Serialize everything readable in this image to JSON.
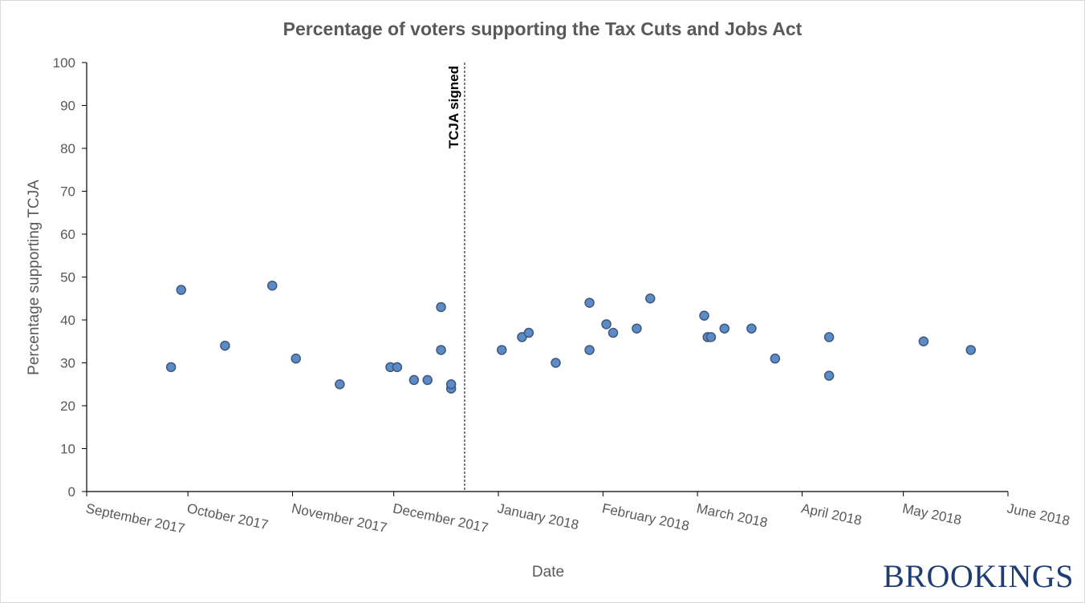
{
  "brand": {
    "name": "BROOKINGS",
    "color": "#1f3d73"
  },
  "chart_data": {
    "type": "scatter",
    "title": "Percentage of voters supporting the Tax Cuts and Jobs Act",
    "xlabel": "Date",
    "ylabel": "Percentage supporting TCJA",
    "ylim": [
      0,
      100
    ],
    "yticks": [
      0,
      10,
      20,
      30,
      40,
      50,
      60,
      70,
      80,
      90,
      100
    ],
    "xlim": [
      "2017-09-01",
      "2018-06-01"
    ],
    "xticks": [
      {
        "date": "2017-09-01",
        "label": "September 2017"
      },
      {
        "date": "2017-10-01",
        "label": "October 2017"
      },
      {
        "date": "2017-11-01",
        "label": "November 2017"
      },
      {
        "date": "2017-12-01",
        "label": "December 2017"
      },
      {
        "date": "2018-01-01",
        "label": "January 2018"
      },
      {
        "date": "2018-02-01",
        "label": "February 2018"
      },
      {
        "date": "2018-03-01",
        "label": "March 2018"
      },
      {
        "date": "2018-04-01",
        "label": "April 2018"
      },
      {
        "date": "2018-05-01",
        "label": "May 2018"
      },
      {
        "date": "2018-06-01",
        "label": "June 2018"
      }
    ],
    "grid": false,
    "marker_color": "#5b8cc8",
    "marker_edge_color": "#41577a",
    "annotation": {
      "label": "TCJA signed",
      "date": "2017-12-22"
    },
    "points": [
      {
        "x": "2017-09-26",
        "y": 29
      },
      {
        "x": "2017-09-29",
        "y": 47
      },
      {
        "x": "2017-10-12",
        "y": 34
      },
      {
        "x": "2017-10-26",
        "y": 48
      },
      {
        "x": "2017-11-02",
        "y": 31
      },
      {
        "x": "2017-11-15",
        "y": 25
      },
      {
        "x": "2017-11-30",
        "y": 29
      },
      {
        "x": "2017-12-02",
        "y": 29
      },
      {
        "x": "2017-12-07",
        "y": 26
      },
      {
        "x": "2017-12-11",
        "y": 26
      },
      {
        "x": "2017-12-15",
        "y": 43
      },
      {
        "x": "2017-12-15",
        "y": 33
      },
      {
        "x": "2017-12-18",
        "y": 24
      },
      {
        "x": "2017-12-18",
        "y": 25
      },
      {
        "x": "2018-01-02",
        "y": 33
      },
      {
        "x": "2018-01-08",
        "y": 36
      },
      {
        "x": "2018-01-10",
        "y": 37
      },
      {
        "x": "2018-01-18",
        "y": 30
      },
      {
        "x": "2018-01-28",
        "y": 44
      },
      {
        "x": "2018-01-28",
        "y": 33
      },
      {
        "x": "2018-02-02",
        "y": 39
      },
      {
        "x": "2018-02-04",
        "y": 37
      },
      {
        "x": "2018-02-11",
        "y": 38
      },
      {
        "x": "2018-02-15",
        "y": 45
      },
      {
        "x": "2018-03-03",
        "y": 41
      },
      {
        "x": "2018-03-04",
        "y": 36
      },
      {
        "x": "2018-03-05",
        "y": 36
      },
      {
        "x": "2018-03-09",
        "y": 38
      },
      {
        "x": "2018-03-17",
        "y": 38
      },
      {
        "x": "2018-03-24",
        "y": 31
      },
      {
        "x": "2018-04-09",
        "y": 36
      },
      {
        "x": "2018-04-09",
        "y": 27
      },
      {
        "x": "2018-05-07",
        "y": 35
      },
      {
        "x": "2018-05-21",
        "y": 33
      }
    ]
  }
}
